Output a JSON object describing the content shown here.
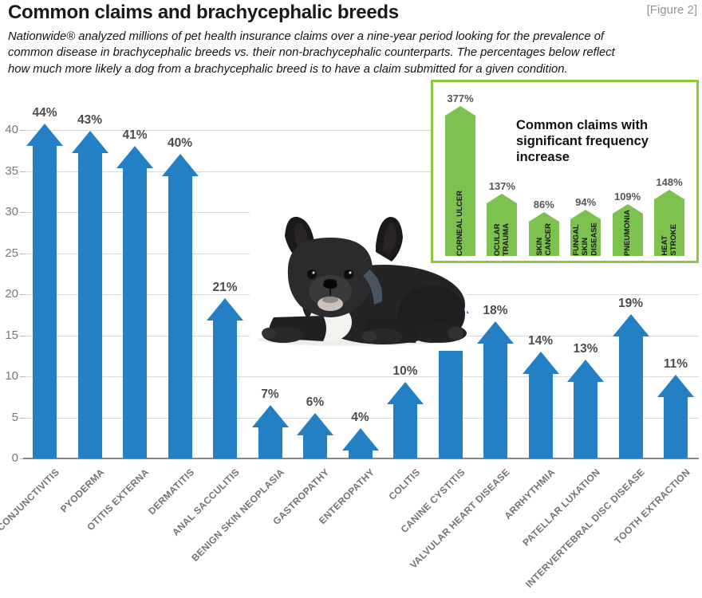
{
  "header": {
    "title": "Common claims and brachycephalic breeds",
    "figure_tag": "[Figure 2]",
    "description": "Nationwide® analyzed millions of pet health insurance claims over a nine-year period looking for the prevalence of\ncommon disease in brachycephalic breeds vs. their non-brachycephalic counterparts. The percentages below reflect\nhow much more likely a dog from a brachycephalic breed is to have a claim submitted for a given condition."
  },
  "illustration": {
    "subject": "black French bulldog puppy lying down"
  },
  "colors": {
    "bar_blue": "#2380c4",
    "bar_green": "#7dc24f",
    "inset_border_green": "#8dc63f",
    "gridline": "#d9d9da",
    "axis_line": "#85878a",
    "axis_text": "#77787b",
    "value_text": "#4b4c4e",
    "category_text": "#6f747a"
  },
  "chart_data": [
    {
      "name": "main",
      "type": "bar",
      "bar_style": "upward-arrow",
      "unit": "%",
      "categories": [
        "CONJUNCTIVITIS",
        "PYODERMA",
        "OTITIS EXTERNA",
        "DERMATITIS",
        "ANAL SACCULITIS",
        "BENIGN SKIN NEOPLASIA",
        "GASTROPATHY",
        "ENTEROPATHY",
        "COLITIS",
        "CANINE CYSTITIS",
        "VALVULAR HEART DISEASE",
        "ARRHYTHMIA",
        "PATELLAR LUXATION",
        "INTERVERTEBRAL DISC DISEASE",
        "TOOTH EXTRACTION"
      ],
      "values": [
        44,
        43,
        41,
        40,
        21,
        7,
        6,
        4,
        10,
        22,
        18,
        14,
        13,
        19,
        11
      ],
      "ylim": [
        0,
        40
      ],
      "yticks": [
        0,
        5,
        10,
        15,
        20,
        25,
        30,
        35,
        40
      ],
      "grid": true,
      "legend": false
    },
    {
      "name": "inset",
      "type": "bar",
      "bar_style": "pointed-bar",
      "title": "Common claims with significant frequency increase",
      "unit": "%",
      "categories": [
        "CORNEAL ULCER",
        "OCULAR\nTRAUMA",
        "SKIN\nCANCER",
        "FUNGAL\nSKIN\nDISEASE",
        "PNEUMONIA",
        "HEAT\nSTROKE"
      ],
      "values": [
        377,
        137,
        86,
        94,
        109,
        148
      ],
      "grid": false,
      "legend": false
    }
  ]
}
